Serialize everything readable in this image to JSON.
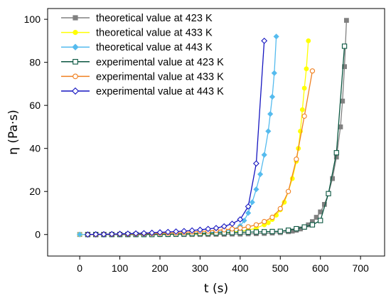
{
  "chart_data": {
    "type": "line",
    "title": "",
    "xlabel": "t (s)",
    "ylabel": "η (Pa·s)",
    "xlim": [
      -80,
      760
    ],
    "ylim": [
      -10,
      105
    ],
    "xticks": [
      "0",
      "100",
      "200",
      "300",
      "400",
      "500",
      "600",
      "700"
    ],
    "yticks": [
      "0",
      "20",
      "40",
      "60",
      "80",
      "100"
    ],
    "xtick_values": [
      0,
      100,
      200,
      300,
      400,
      500,
      600,
      700
    ],
    "ytick_values": [
      0,
      20,
      40,
      60,
      80,
      100
    ],
    "grid": false,
    "legend_position": "top-left",
    "series": [
      {
        "name": "theoretical value at 423 K",
        "color": "#808080",
        "marker": "square-filled",
        "x": [
          0,
          20,
          40,
          60,
          80,
          100,
          120,
          140,
          160,
          180,
          200,
          220,
          240,
          260,
          280,
          300,
          320,
          340,
          360,
          380,
          400,
          420,
          440,
          460,
          480,
          500,
          520,
          530,
          540,
          550,
          560,
          570,
          580,
          590,
          600,
          610,
          620,
          630,
          640,
          650,
          655,
          660,
          665
        ],
        "y": [
          0,
          0,
          0,
          0,
          0,
          0,
          0,
          0,
          0,
          0,
          0,
          0,
          0,
          0,
          0,
          0,
          0,
          0.1,
          0.1,
          0.2,
          0.2,
          0.3,
          0.4,
          0.5,
          0.7,
          0.9,
          1.3,
          1.6,
          2.0,
          2.6,
          3.4,
          4.5,
          6.0,
          8.0,
          10.5,
          14.0,
          19.0,
          26.0,
          36.0,
          50.0,
          62.0,
          78.0,
          99.5
        ]
      },
      {
        "name": "theoretical value at 433 K",
        "color": "#FFFF00",
        "marker": "circle-filled",
        "x": [
          0,
          20,
          40,
          60,
          80,
          100,
          120,
          140,
          160,
          180,
          200,
          220,
          240,
          260,
          280,
          300,
          320,
          340,
          360,
          380,
          400,
          420,
          440,
          460,
          470,
          480,
          490,
          500,
          510,
          520,
          530,
          540,
          545,
          550,
          555,
          560,
          565,
          570
        ],
        "y": [
          0,
          0,
          0,
          0,
          0,
          0,
          0,
          0,
          0,
          0,
          0,
          0.1,
          0.1,
          0.2,
          0.2,
          0.3,
          0.4,
          0.6,
          0.8,
          1.1,
          1.5,
          2.0,
          3.0,
          4.5,
          5.5,
          7.0,
          9.0,
          11.5,
          15.0,
          20.0,
          26.0,
          34.0,
          40.0,
          48.0,
          58.0,
          68.0,
          77.0,
          90.0
        ]
      },
      {
        "name": "theoretical value at 443 K",
        "color": "#55BBEE",
        "marker": "diamond-filled",
        "x": [
          0,
          20,
          40,
          60,
          80,
          100,
          120,
          140,
          160,
          180,
          200,
          220,
          240,
          260,
          280,
          300,
          320,
          340,
          360,
          380,
          400,
          410,
          420,
          430,
          440,
          450,
          460,
          470,
          475,
          480,
          485,
          490
        ],
        "y": [
          0,
          0,
          0,
          0,
          0,
          0,
          0,
          0,
          0,
          0,
          0,
          0.1,
          0.2,
          0.3,
          0.4,
          0.6,
          0.8,
          1.1,
          1.5,
          2.2,
          4.0,
          6.5,
          10.0,
          15.0,
          21.0,
          28.0,
          37.0,
          48.0,
          56.0,
          64.0,
          75.0,
          92.0
        ]
      },
      {
        "name": "experimental value at 423 K",
        "color": "#0A5640",
        "marker": "square-open",
        "x": [
          20,
          40,
          60,
          80,
          100,
          120,
          140,
          160,
          180,
          200,
          220,
          240,
          260,
          280,
          300,
          320,
          340,
          360,
          380,
          400,
          420,
          440,
          460,
          480,
          500,
          520,
          540,
          560,
          580,
          600,
          620,
          640,
          660
        ],
        "y": [
          0,
          0,
          0,
          0,
          0,
          0,
          0,
          0,
          0,
          0.1,
          0.1,
          0.2,
          0.3,
          0.4,
          0.5,
          0.6,
          0.7,
          0.8,
          0.9,
          1.0,
          1.1,
          1.2,
          1.3,
          1.4,
          1.5,
          2.0,
          2.7,
          3.5,
          4.5,
          6.5,
          19.0,
          38.0,
          87.5
        ]
      },
      {
        "name": "experimental value at 433 K",
        "color": "#F08020",
        "marker": "circle-open",
        "x": [
          20,
          40,
          60,
          80,
          100,
          120,
          140,
          160,
          180,
          200,
          220,
          240,
          260,
          280,
          300,
          320,
          340,
          360,
          380,
          400,
          420,
          440,
          460,
          480,
          500,
          520,
          540,
          560,
          580
        ],
        "y": [
          0,
          0,
          0.1,
          0.1,
          0.2,
          0.2,
          0.3,
          0.4,
          0.5,
          0.6,
          0.7,
          0.8,
          1.0,
          1.2,
          1.4,
          1.6,
          1.9,
          2.2,
          2.6,
          3.0,
          3.6,
          4.5,
          6.0,
          8.0,
          12.0,
          20.0,
          35.0,
          55.0,
          76.0
        ]
      },
      {
        "name": "experimental value at 443 K",
        "color": "#1515C0",
        "marker": "diamond-open",
        "x": [
          20,
          40,
          60,
          80,
          100,
          120,
          140,
          160,
          180,
          200,
          220,
          240,
          260,
          280,
          300,
          320,
          340,
          360,
          380,
          400,
          420,
          440,
          460
        ],
        "y": [
          0,
          0.1,
          0.1,
          0.2,
          0.3,
          0.4,
          0.5,
          0.6,
          0.8,
          1.0,
          1.2,
          1.4,
          1.6,
          1.9,
          2.2,
          2.6,
          3.0,
          3.8,
          5.0,
          7.0,
          13.0,
          33.0,
          90.0
        ]
      }
    ]
  }
}
